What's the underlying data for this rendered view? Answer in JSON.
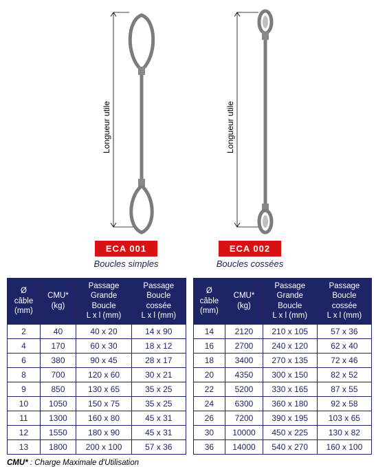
{
  "colors": {
    "accent_navy": "#1d2566",
    "header_bg": "#1d2566",
    "badge_bg": "#d81212",
    "badge_text": "#ffffff",
    "cable_gray": "#7c7c7c",
    "dim_line": "#000000",
    "caption_color": "#1d2060"
  },
  "typography": {
    "font_family": "Arial, Helvetica, sans-serif",
    "badge_fontsize": 13,
    "caption_fontsize": 13,
    "table_fontsize": 12,
    "header_fontsize": 11.5,
    "footnote_fontsize": 11.5
  },
  "diagrams": [
    {
      "id": "eca001",
      "badge": "ECA 001",
      "caption": "Boucles simples",
      "dim_label": "Longueur utile",
      "style": "simple"
    },
    {
      "id": "eca002",
      "badge": "ECA 002",
      "caption": "Boucles cossées",
      "dim_label": "Longueur utile",
      "style": "cossee"
    }
  ],
  "table_headers": [
    "Ø\ncâble\n(mm)",
    "CMU*\n(kg)",
    "Passage\nGrande\nBoucle\nL x l (mm)",
    "Passage\nBoucle\ncossée\nL x l (mm)"
  ],
  "table_left": [
    [
      "2",
      "40",
      "40 x 20",
      "14 x 90"
    ],
    [
      "4",
      "170",
      "60 x 30",
      "18 x 12"
    ],
    [
      "6",
      "380",
      "90 x 45",
      "28 x 17"
    ],
    [
      "8",
      "700",
      "120 x 60",
      "30 x 21"
    ],
    [
      "9",
      "850",
      "130 x 65",
      "35 x 25"
    ],
    [
      "10",
      "1050",
      "150 x 75",
      "35 x 25"
    ],
    [
      "11",
      "1300",
      "160 x 80",
      "45 x 31"
    ],
    [
      "12",
      "1550",
      "180 x 90",
      "45 x 31"
    ],
    [
      "13",
      "1800",
      "200 x 100",
      "57 x 36"
    ]
  ],
  "table_right": [
    [
      "14",
      "2120",
      "210 x 105",
      "57 x 36"
    ],
    [
      "16",
      "2700",
      "240 x 120",
      "62 x 40"
    ],
    [
      "18",
      "3400",
      "270 x 135",
      "72 x 46"
    ],
    [
      "20",
      "4350",
      "300 x 150",
      "82 x 52"
    ],
    [
      "22",
      "5200",
      "330 x 165",
      "87 x 55"
    ],
    [
      "24",
      "6300",
      "360 x 180",
      "92 x 58"
    ],
    [
      "26",
      "7200",
      "390 x 195",
      "103 x 65"
    ],
    [
      "30",
      "10000",
      "450 x 225",
      "130 x 82"
    ],
    [
      "36",
      "14000",
      "540 x 270",
      "160 x 100"
    ]
  ],
  "footnote_label": "CMU*",
  "footnote_text": " : Charge Maximale d'Utilisation"
}
